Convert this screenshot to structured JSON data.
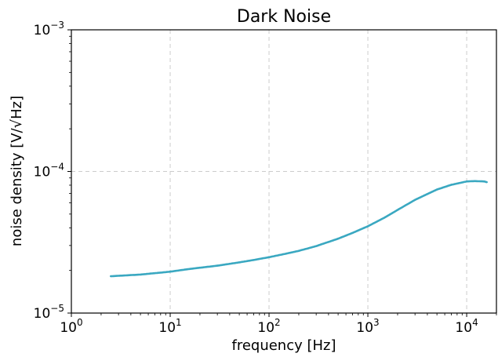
{
  "chart_data": {
    "type": "line",
    "title": "Dark Noise",
    "xlabel": "frequency [Hz]",
    "ylabel": "noise density [V/√Hz]",
    "xscale": "log",
    "yscale": "log",
    "xlim": [
      1,
      20000
    ],
    "ylim": [
      1e-05,
      0.001
    ],
    "grid": true,
    "x_ticks": [
      {
        "value": 1,
        "base": "10",
        "exp": "0"
      },
      {
        "value": 10,
        "base": "10",
        "exp": "1"
      },
      {
        "value": 100,
        "base": "10",
        "exp": "2"
      },
      {
        "value": 1000,
        "base": "10",
        "exp": "3"
      },
      {
        "value": 10000,
        "base": "10",
        "exp": "4"
      }
    ],
    "y_ticks": [
      {
        "value": 1e-05,
        "base": "10",
        "exp": "−5"
      },
      {
        "value": 0.0001,
        "base": "10",
        "exp": "−4"
      },
      {
        "value": 0.001,
        "base": "10",
        "exp": "−3"
      }
    ],
    "series": [
      {
        "color": "#3aa8c1",
        "x": [
          2.5,
          5,
          10,
          15,
          20,
          30,
          50,
          70,
          100,
          150,
          200,
          300,
          500,
          700,
          1000,
          1500,
          2000,
          3000,
          5000,
          7000,
          10000,
          12000,
          15000,
          16000
        ],
        "y": [
          1.82e-05,
          1.87e-05,
          1.96e-05,
          2.04e-05,
          2.09e-05,
          2.16e-05,
          2.28e-05,
          2.37e-05,
          2.48e-05,
          2.63e-05,
          2.75e-05,
          2.97e-05,
          3.35e-05,
          3.68e-05,
          4.1e-05,
          4.75e-05,
          5.35e-05,
          6.3e-05,
          7.45e-05,
          8.05e-05,
          8.5e-05,
          8.55e-05,
          8.5e-05,
          8.4e-05
        ]
      }
    ]
  }
}
